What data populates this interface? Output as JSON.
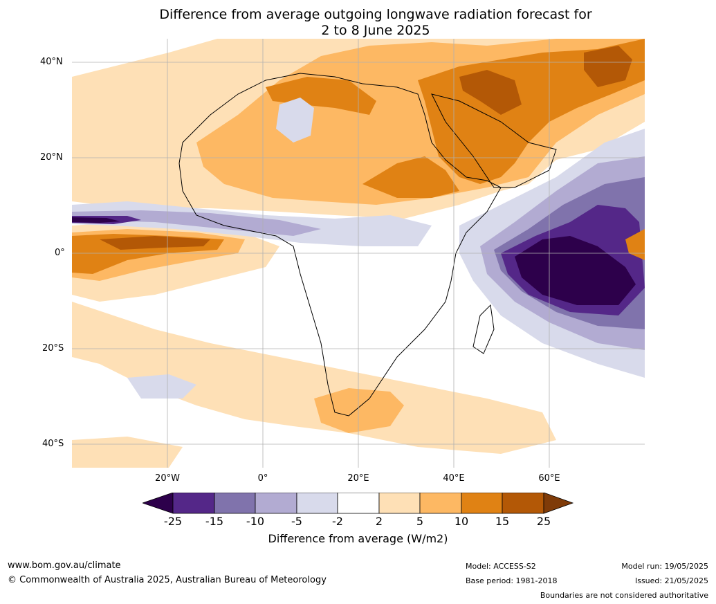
{
  "title_line1": "Difference from average outgoing longwave radiation forecast for",
  "title_line2": "2 to 8 June 2025",
  "lat_labels": [
    "40°N",
    "20°N",
    "0°",
    "20°S",
    "40°S"
  ],
  "lon_labels": [
    "20°W",
    "0°",
    "20°E",
    "40°E",
    "60°E"
  ],
  "colorbar": {
    "ticks": [
      "-25",
      "-15",
      "-10",
      "-5",
      "-2",
      "2",
      "5",
      "10",
      "15",
      "25"
    ],
    "label": "Difference from average (W/m2)",
    "colors": {
      "below_min": "#2d004b",
      "neg_25_15": "#542788",
      "neg_15_10": "#8073ac",
      "neg_10_5": "#b2abd2",
      "neg_5_2": "#d8daeb",
      "neutral": "#ffffff",
      "pos_2_5": "#fee0b6",
      "pos_5_10": "#fdb863",
      "pos_10_15": "#e08214",
      "pos_15_25": "#b35806",
      "above_max": "#7f3b08"
    }
  },
  "footer": {
    "website": "www.bom.gov.au/climate",
    "copyright": "© Commonwealth of Australia 2025, Australian Bureau of Meteorology",
    "model": "Model: ACCESS-S2",
    "base_period": "Base period: 1981-2018",
    "model_run": "Model run: 19/05/2025",
    "issued": "Issued: 21/05/2025",
    "boundaries_note": "Boundaries are not considered authoritative"
  }
}
